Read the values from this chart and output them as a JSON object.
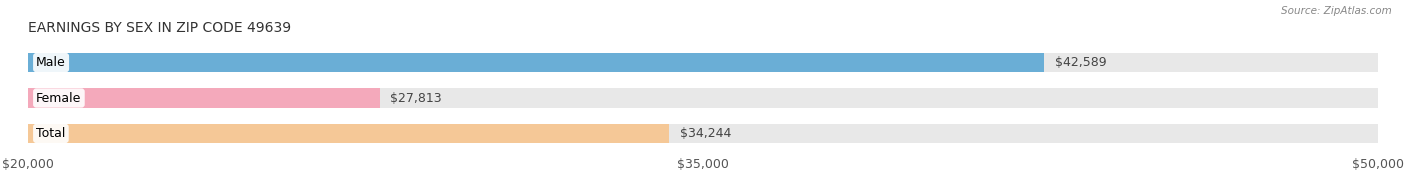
{
  "title": "EARNINGS BY SEX IN ZIP CODE 49639",
  "source": "Source: ZipAtlas.com",
  "categories": [
    "Male",
    "Female",
    "Total"
  ],
  "values": [
    42589,
    27813,
    34244
  ],
  "x_min": 20000,
  "x_max": 50000,
  "x_ticks": [
    20000,
    35000,
    50000
  ],
  "x_tick_labels": [
    "$20,000",
    "$35,000",
    "$50,000"
  ],
  "bar_colors": [
    "#6aaed6",
    "#f4a9bb",
    "#f5c897"
  ],
  "bar_bg_color": "#e8e8e8",
  "value_labels": [
    "$42,589",
    "$27,813",
    "$34,244"
  ],
  "label_fontsize": 9,
  "title_fontsize": 10,
  "bar_height": 0.55,
  "figsize": [
    14.06,
    1.96
  ],
  "dpi": 100
}
